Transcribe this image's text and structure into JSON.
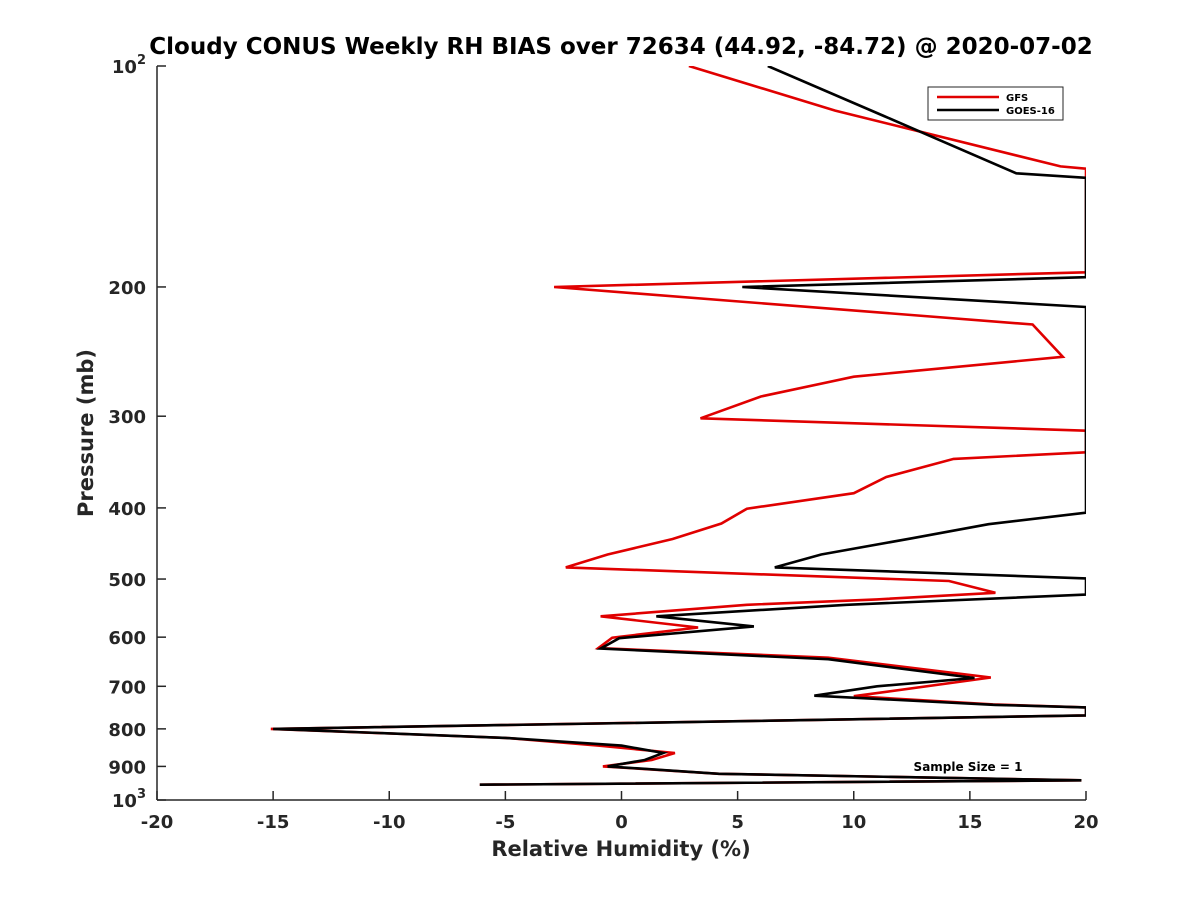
{
  "chart_data": {
    "type": "line",
    "title": "Cloudy CONUS Weekly RH BIAS over 72634 (44.92, -84.72) @ 2020-07-02",
    "xlabel": "Relative Humidity (%)",
    "ylabel": "Pressure (mb)",
    "xlim": [
      -20,
      20
    ],
    "ylim": [
      100,
      1000
    ],
    "y_scale": "log",
    "y_reversed": true,
    "grid": false,
    "legend_position": "top-right",
    "x_ticks": [
      -20,
      -15,
      -10,
      -5,
      0,
      5,
      10,
      15,
      20
    ],
    "x_tick_labels": [
      "-20",
      "-15",
      "-10",
      "-5",
      "0",
      "5",
      "10",
      "15",
      "20"
    ],
    "y_ticks": [
      {
        "value": 100,
        "base": "10",
        "exp": "2"
      },
      {
        "value": 200,
        "label": "200"
      },
      {
        "value": 300,
        "label": "300"
      },
      {
        "value": 400,
        "label": "400"
      },
      {
        "value": 500,
        "label": "500"
      },
      {
        "value": 600,
        "label": "600"
      },
      {
        "value": 700,
        "label": "700"
      },
      {
        "value": 800,
        "label": "800"
      },
      {
        "value": 900,
        "label": "900"
      },
      {
        "value": 1000,
        "base": "10",
        "exp": "3"
      }
    ],
    "annotation": "Sample Size = 1",
    "series": [
      {
        "name": "GFS",
        "color": "#e00000",
        "points": [
          [
            2.9,
            100
          ],
          [
            9.2,
            115
          ],
          [
            18.9,
            137
          ],
          [
            20,
            138
          ],
          [
            20,
            191
          ],
          [
            -2.9,
            200
          ],
          [
            17.7,
            225
          ],
          [
            19.0,
            249
          ],
          [
            10.0,
            265
          ],
          [
            6.0,
            282
          ],
          [
            3.4,
            302
          ],
          [
            20,
            314
          ],
          [
            20,
            336
          ],
          [
            14.3,
            343
          ],
          [
            11.4,
            363
          ],
          [
            10.0,
            382
          ],
          [
            5.4,
            401
          ],
          [
            4.3,
            420
          ],
          [
            2.2,
            441
          ],
          [
            -0.6,
            463
          ],
          [
            -2.4,
            482
          ],
          [
            14.1,
            503
          ],
          [
            16.1,
            522
          ],
          [
            11.0,
            533
          ],
          [
            5.4,
            542
          ],
          [
            -0.9,
            562
          ],
          [
            3.3,
            582
          ],
          [
            -0.4,
            601
          ],
          [
            -1.0,
            621
          ],
          [
            8.9,
            640
          ],
          [
            15.9,
            681
          ],
          [
            10.0,
            722
          ],
          [
            16.0,
            741
          ],
          [
            20,
            748
          ],
          [
            20,
            767
          ],
          [
            -15.1,
            800
          ],
          [
            -5.0,
            823
          ],
          [
            -1.0,
            843
          ],
          [
            2.3,
            863
          ],
          [
            1.3,
            882
          ],
          [
            -0.8,
            900
          ],
          [
            4.2,
            921
          ],
          [
            19.8,
            940
          ],
          [
            -6.1,
            953
          ]
        ]
      },
      {
        "name": "GOES-16",
        "color": "#000000",
        "points": [
          [
            6.3,
            100
          ],
          [
            11.3,
            117
          ],
          [
            17.0,
            140
          ],
          [
            20,
            142
          ],
          [
            20,
            194
          ],
          [
            5.2,
            200
          ],
          [
            20,
            213
          ],
          [
            20,
            406
          ],
          [
            15.8,
            421
          ],
          [
            12.5,
            440
          ],
          [
            8.6,
            463
          ],
          [
            6.6,
            482
          ],
          [
            20,
            499
          ],
          [
            20,
            525
          ],
          [
            9.7,
            542
          ],
          [
            1.5,
            562
          ],
          [
            5.7,
            580
          ],
          [
            -0.1,
            602
          ],
          [
            -0.9,
            622
          ],
          [
            8.9,
            643
          ],
          [
            15.2,
            682
          ],
          [
            11.0,
            700
          ],
          [
            8.3,
            721
          ],
          [
            16.1,
            742
          ],
          [
            20,
            748
          ],
          [
            20,
            767
          ],
          [
            -15.0,
            800
          ],
          [
            -5.0,
            823
          ],
          [
            -0.0,
            843
          ],
          [
            1.8,
            863
          ],
          [
            1.0,
            882
          ],
          [
            -0.6,
            900
          ],
          [
            4.2,
            921
          ],
          [
            19.8,
            940
          ],
          [
            -6.1,
            953
          ]
        ]
      }
    ]
  }
}
